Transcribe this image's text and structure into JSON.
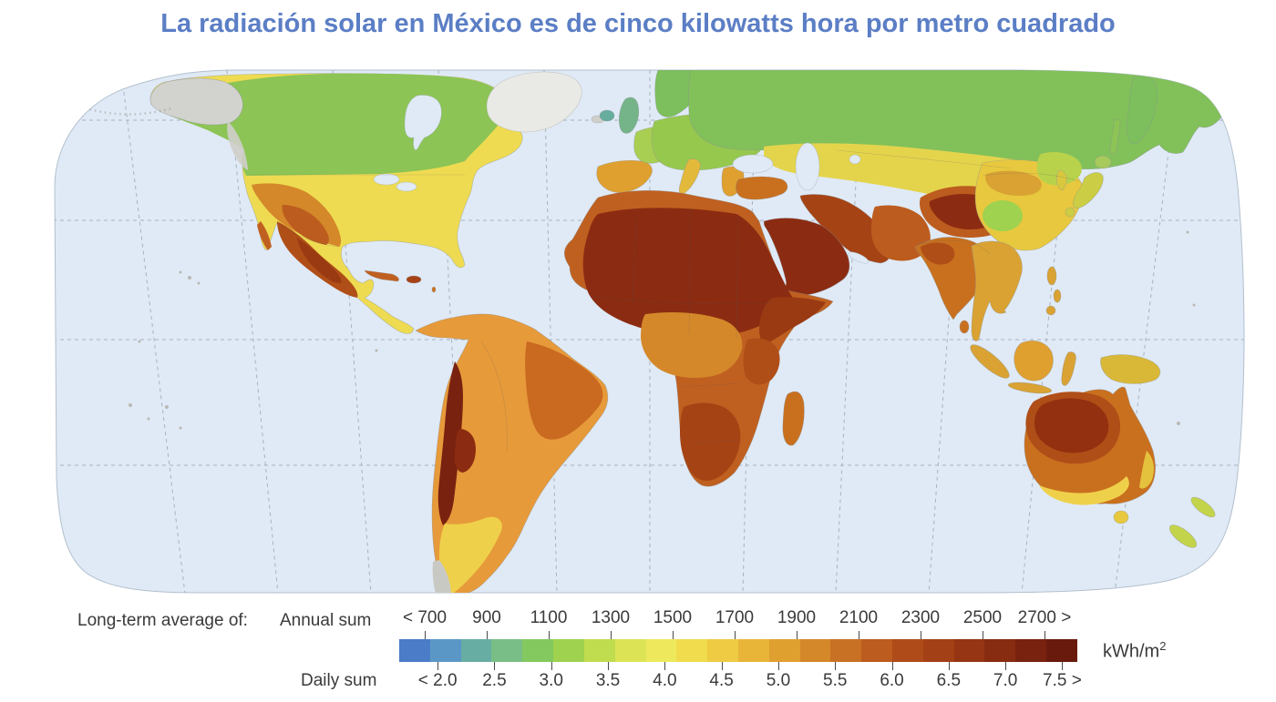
{
  "title": {
    "text": "La radiación solar en México es de cinco kilowatts hora por metro cuadrado",
    "color": "#5B7EC5"
  },
  "map": {
    "description": "World map of long-term average solar irradiation (global horizontal irradiation)",
    "ocean_color": "#E0EAF6",
    "graticule_color": "#9AA5B0",
    "regions": [
      {
        "name": "canada-north-europe-siberia",
        "color": "#8CC455"
      },
      {
        "name": "usa-central-asia-china",
        "color": "#EEDC52"
      },
      {
        "name": "mexico-southwest-usa",
        "color": "#B04E18"
      },
      {
        "name": "south-america",
        "color": "#E79A3A"
      },
      {
        "name": "andes",
        "color": "#7A2210"
      },
      {
        "name": "sahara-arabia-horn-of-africa",
        "color": "#8B2C12"
      },
      {
        "name": "southern-africa",
        "color": "#A64315"
      },
      {
        "name": "india-southeast-asia",
        "color": "#C9701F"
      },
      {
        "name": "tibet-himalaya",
        "color": "#8B2C12"
      },
      {
        "name": "australia-interior",
        "color": "#93300F"
      },
      {
        "name": "greenland-patagonia-alaska",
        "color": "#D9D9D4"
      }
    ]
  },
  "legend": {
    "prefix_label": "Long-term average of:",
    "annual_label": "Annual sum",
    "daily_label": "Daily sum",
    "annual_ticks": [
      "< 700",
      "900",
      "1100",
      "1300",
      "1500",
      "1700",
      "1900",
      "2100",
      "2300",
      "2500",
      "2700 >"
    ],
    "daily_ticks": [
      "< 2.0",
      "2.5",
      "3.0",
      "3.5",
      "4.0",
      "4.5",
      "5.0",
      "5.5",
      "6.0",
      "6.5",
      "7.0",
      "7.5 >"
    ],
    "unit_text": "kWh/m",
    "unit_sup": "2",
    "colors": [
      "#4A7CC7",
      "#5B97C6",
      "#67ADA4",
      "#79BE86",
      "#83C95F",
      "#9ED24F",
      "#C0DC4F",
      "#DCE355",
      "#EEE95C",
      "#F0DC4C",
      "#EECB42",
      "#E8B539",
      "#DFA030",
      "#D4882A",
      "#C87124",
      "#BC5C1E",
      "#AF4B19",
      "#A34015",
      "#953513",
      "#872C11",
      "#78220F",
      "#691A0D"
    ]
  }
}
